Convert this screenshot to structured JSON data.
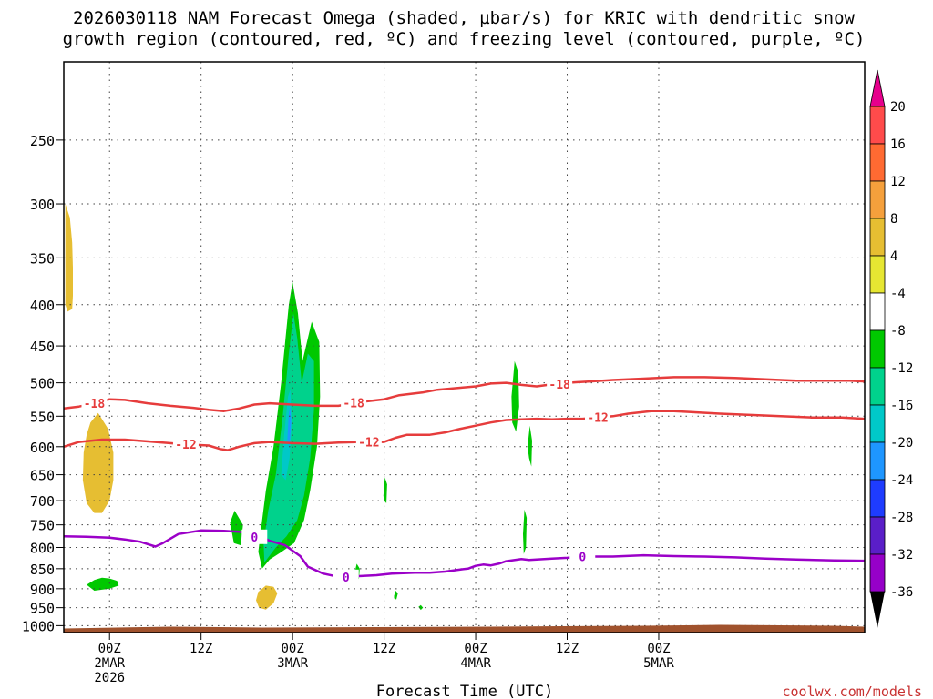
{
  "chart_data": {
    "type": "time-height contour",
    "title_lines": [
      "2026030118 NAM Forecast Omega (shaded, µbar/s) for KRIC with dendritic snow",
      "growth region (contoured, red, ºC) and freezing level (contoured, purple, ºC)"
    ],
    "xlabel": "Forecast Time (UTC)",
    "credit": "coolwx.com/models",
    "x_range_hours": [
      -6,
      99
    ],
    "y_range_mb": [
      1020,
      200
    ],
    "y_ticks": [
      250,
      300,
      350,
      400,
      450,
      500,
      550,
      600,
      650,
      700,
      750,
      800,
      850,
      900,
      950,
      1000
    ],
    "x_ticks": [
      {
        "t": 0,
        "lines": [
          "00Z",
          "2MAR",
          "2026"
        ]
      },
      {
        "t": 12,
        "lines": [
          "12Z"
        ]
      },
      {
        "t": 24,
        "lines": [
          "00Z",
          "3MAR"
        ]
      },
      {
        "t": 36,
        "lines": [
          "12Z"
        ]
      },
      {
        "t": 48,
        "lines": [
          "00Z",
          "4MAR"
        ]
      },
      {
        "t": 60,
        "lines": [
          "12Z"
        ]
      },
      {
        "t": 72,
        "lines": [
          "00Z",
          "5MAR"
        ]
      }
    ],
    "colorbar": [
      {
        "label": "20",
        "color": "#ff4b4b"
      },
      {
        "label": "16",
        "color": "#ff6a32"
      },
      {
        "label": "12",
        "color": "#f5a03c"
      },
      {
        "label": "8",
        "color": "#e6be32"
      },
      {
        "label": "4",
        "color": "#e6e632"
      },
      {
        "label": "-4",
        "color": "#ffffff"
      },
      {
        "label": "-8",
        "color": "#00c800"
      },
      {
        "label": "-12",
        "color": "#00d28c"
      },
      {
        "label": "-16",
        "color": "#00c8c8"
      },
      {
        "label": "-20",
        "color": "#1e96ff"
      },
      {
        "label": "-24",
        "color": "#1e3cff"
      },
      {
        "label": "-28",
        "color": "#5a1ec8"
      },
      {
        "label": "-32",
        "color": "#9600c8"
      },
      {
        "label": "-36",
        "color": "#a0a0a0"
      }
    ],
    "colorbar_top_color": "#e6008c",
    "colorbar_bottom_color": "#000000",
    "contour_colors": {
      "dgz": "#e63c3c",
      "freezing": "#9b00c8",
      "terrain": "#a0522d"
    },
    "dgz_minus12": [
      [
        -6,
        600
      ],
      [
        -4,
        592
      ],
      [
        -1,
        588
      ],
      [
        2,
        588
      ],
      [
        6,
        592
      ],
      [
        10,
        596
      ],
      [
        13,
        598
      ],
      [
        14.5,
        604
      ],
      [
        15.5,
        606
      ],
      [
        17,
        600
      ],
      [
        19,
        594
      ],
      [
        21,
        592
      ],
      [
        24,
        594
      ],
      [
        27,
        595
      ],
      [
        30,
        593
      ],
      [
        33,
        592
      ],
      [
        36,
        592
      ],
      [
        37.5,
        585
      ],
      [
        39,
        580
      ],
      [
        42,
        580
      ],
      [
        44,
        576
      ],
      [
        46,
        570
      ],
      [
        48,
        565
      ],
      [
        50,
        560
      ],
      [
        52,
        556
      ],
      [
        54,
        555
      ],
      [
        56,
        554
      ],
      [
        58,
        555
      ],
      [
        60,
        554
      ],
      [
        62,
        554
      ],
      [
        64,
        552
      ],
      [
        66,
        550
      ],
      [
        68,
        546
      ],
      [
        71,
        542
      ],
      [
        74,
        542
      ],
      [
        77,
        544
      ],
      [
        80,
        546
      ],
      [
        84,
        548
      ],
      [
        88,
        550
      ],
      [
        92,
        552
      ],
      [
        96,
        552
      ],
      [
        99,
        554
      ]
    ],
    "dgz_minus12_labels": [
      [
        10,
        596,
        "-12"
      ],
      [
        34,
        592,
        "-12"
      ],
      [
        64,
        552,
        "-12"
      ]
    ],
    "dgz_minus18": [
      [
        -6,
        538
      ],
      [
        -4,
        535
      ],
      [
        -2,
        530
      ],
      [
        0,
        524
      ],
      [
        2,
        525
      ],
      [
        5,
        530
      ],
      [
        8,
        534
      ],
      [
        11,
        537
      ],
      [
        13,
        540
      ],
      [
        15,
        542
      ],
      [
        17,
        538
      ],
      [
        19,
        532
      ],
      [
        21,
        530
      ],
      [
        24,
        532
      ],
      [
        27,
        534
      ],
      [
        30,
        534
      ],
      [
        33,
        528
      ],
      [
        36,
        524
      ],
      [
        38,
        518
      ],
      [
        41,
        514
      ],
      [
        43,
        510
      ],
      [
        46,
        507
      ],
      [
        48,
        505
      ],
      [
        50,
        501
      ],
      [
        52,
        500
      ],
      [
        54,
        503
      ],
      [
        56,
        505
      ],
      [
        58,
        502
      ],
      [
        60,
        500
      ],
      [
        63,
        498
      ],
      [
        66,
        496
      ],
      [
        70,
        494
      ],
      [
        74,
        492
      ],
      [
        78,
        492
      ],
      [
        82,
        493
      ],
      [
        86,
        495
      ],
      [
        90,
        497
      ],
      [
        94,
        497
      ],
      [
        97,
        497
      ],
      [
        99,
        498
      ]
    ],
    "dgz_minus18_labels": [
      [
        -2,
        530,
        "-18"
      ],
      [
        32,
        529,
        "-18"
      ],
      [
        59,
        502,
        "-18"
      ]
    ],
    "freezing_line": [
      [
        -6,
        775
      ],
      [
        -3,
        776
      ],
      [
        0,
        778
      ],
      [
        2,
        782
      ],
      [
        4,
        787
      ],
      [
        6,
        798
      ],
      [
        7,
        790
      ],
      [
        9,
        770
      ],
      [
        12,
        762
      ],
      [
        15,
        763
      ],
      [
        17,
        765
      ],
      [
        19,
        770
      ],
      [
        20,
        777
      ],
      [
        21,
        785
      ],
      [
        23,
        795
      ],
      [
        25,
        820
      ],
      [
        26,
        845
      ],
      [
        28,
        862
      ],
      [
        30,
        870
      ],
      [
        33,
        868
      ],
      [
        35,
        866
      ],
      [
        37,
        862
      ],
      [
        40,
        860
      ],
      [
        42,
        860
      ],
      [
        44,
        857
      ],
      [
        46,
        852
      ],
      [
        47,
        850
      ],
      [
        48,
        843
      ],
      [
        49,
        840
      ],
      [
        50,
        842
      ],
      [
        51,
        838
      ],
      [
        52,
        832
      ],
      [
        54,
        827
      ],
      [
        55,
        829
      ],
      [
        56,
        828
      ],
      [
        58,
        826
      ],
      [
        60,
        824
      ],
      [
        62,
        821
      ],
      [
        66,
        821
      ],
      [
        70,
        818
      ],
      [
        74,
        820
      ],
      [
        78,
        821
      ],
      [
        82,
        823
      ],
      [
        86,
        826
      ],
      [
        90,
        828
      ],
      [
        95,
        830
      ],
      [
        99,
        831
      ]
    ],
    "freezing_labels": [
      [
        19,
        776,
        "0"
      ],
      [
        31,
        870,
        "0"
      ],
      [
        62,
        821,
        "0"
      ]
    ],
    "omega_regions": [
      {
        "value": -8,
        "points": [
          [
            -3,
            890
          ],
          [
            -2,
            878
          ],
          [
            -1,
            872
          ],
          [
            0,
            874
          ],
          [
            1,
            880
          ],
          [
            1.2,
            892
          ],
          [
            0,
            900
          ],
          [
            -2,
            905
          ]
        ]
      },
      {
        "value": 8,
        "points": [
          [
            -5.8,
            300
          ],
          [
            -5.2,
            312
          ],
          [
            -4.9,
            335
          ],
          [
            -4.8,
            360
          ],
          [
            -4.8,
            390
          ],
          [
            -4.9,
            405
          ],
          [
            -5.5,
            408
          ],
          [
            -5.8,
            400
          ]
        ]
      },
      {
        "value": 8,
        "points": [
          [
            -2.5,
            560
          ],
          [
            -1.5,
            545
          ],
          [
            -0.2,
            570
          ],
          [
            0.5,
            610
          ],
          [
            0.5,
            660
          ],
          [
            0,
            700
          ],
          [
            -1,
            725
          ],
          [
            -2,
            725
          ],
          [
            -3,
            705
          ],
          [
            -3.5,
            660
          ],
          [
            -3.4,
            610
          ],
          [
            -3,
            580
          ]
        ]
      },
      {
        "value": 8,
        "points": [
          [
            19.5,
            908
          ],
          [
            20.5,
            892
          ],
          [
            21.5,
            895
          ],
          [
            22,
            912
          ],
          [
            21.5,
            938
          ],
          [
            20.5,
            955
          ],
          [
            19.6,
            950
          ],
          [
            19.2,
            930
          ]
        ]
      },
      {
        "value": -8,
        "points": [
          [
            20,
            850
          ],
          [
            19.5,
            810
          ],
          [
            20,
            740
          ],
          [
            20.5,
            680
          ],
          [
            21.5,
            600
          ],
          [
            22.5,
            500
          ],
          [
            23.5,
            400
          ],
          [
            24,
            375
          ],
          [
            24.7,
            410
          ],
          [
            25.3,
            470
          ],
          [
            26.5,
            420
          ],
          [
            27.5,
            445
          ],
          [
            27.6,
            520
          ],
          [
            27.2,
            600
          ],
          [
            26.3,
            680
          ],
          [
            25.5,
            740
          ],
          [
            24.2,
            790
          ],
          [
            22.4,
            812
          ],
          [
            21,
            828
          ]
        ]
      },
      {
        "value": -12,
        "points": [
          [
            20.3,
            835
          ],
          [
            20.2,
            790
          ],
          [
            20.8,
            720
          ],
          [
            21.8,
            650
          ],
          [
            22.7,
            550
          ],
          [
            23.5,
            460
          ],
          [
            24.1,
            410
          ],
          [
            24.6,
            440
          ],
          [
            25.2,
            500
          ],
          [
            26,
            460
          ],
          [
            26.8,
            470
          ],
          [
            26.8,
            540
          ],
          [
            26.3,
            620
          ],
          [
            25.5,
            690
          ],
          [
            24.6,
            740
          ],
          [
            23.2,
            775
          ],
          [
            21.8,
            800
          ]
        ]
      },
      {
        "value": -16,
        "points": [
          [
            22.5,
            650
          ],
          [
            22.9,
            580
          ],
          [
            23.4,
            520
          ],
          [
            23.7,
            510
          ],
          [
            23.9,
            560
          ],
          [
            23.6,
            620
          ],
          [
            23.1,
            660
          ]
        ]
      },
      {
        "value": -20,
        "points": [
          [
            23.3,
            590
          ],
          [
            23.5,
            545
          ],
          [
            23.7,
            535
          ],
          [
            23.8,
            560
          ],
          [
            23.6,
            600
          ]
        ]
      },
      {
        "value": -8,
        "points": [
          [
            15.8,
            745
          ],
          [
            16.4,
            720
          ],
          [
            17.5,
            750
          ],
          [
            17.2,
            795
          ],
          [
            16.3,
            790
          ]
        ]
      },
      {
        "value": -8,
        "points": [
          [
            52.7,
            520
          ],
          [
            53.1,
            470
          ],
          [
            53.6,
            485
          ],
          [
            53.7,
            535
          ],
          [
            53.3,
            575
          ],
          [
            52.8,
            560
          ]
        ]
      },
      {
        "value": -8,
        "points": [
          [
            54.8,
            600
          ],
          [
            55.1,
            565
          ],
          [
            55.4,
            590
          ],
          [
            55.3,
            635
          ],
          [
            55,
            620
          ]
        ]
      },
      {
        "value": -8,
        "points": [
          [
            54.2,
            770
          ],
          [
            54.4,
            718
          ],
          [
            54.7,
            735
          ],
          [
            54.6,
            800
          ],
          [
            54.3,
            815
          ]
        ]
      },
      {
        "value": -8,
        "points": [
          [
            35.9,
            690
          ],
          [
            36.1,
            655
          ],
          [
            36.4,
            668
          ],
          [
            36.3,
            705
          ],
          [
            36,
            700
          ]
        ]
      },
      {
        "value": -8,
        "points": [
          [
            32.1,
            862
          ],
          [
            32.4,
            838
          ],
          [
            32.8,
            850
          ],
          [
            32.7,
            875
          ],
          [
            32.3,
            878
          ]
        ]
      },
      {
        "value": -8,
        "points": [
          [
            37.3,
            918
          ],
          [
            37.5,
            905
          ],
          [
            37.8,
            912
          ],
          [
            37.6,
            928
          ],
          [
            37.3,
            925
          ]
        ]
      },
      {
        "value": -8,
        "points": [
          [
            40.5,
            948
          ],
          [
            40.8,
            943
          ],
          [
            41.1,
            950
          ],
          [
            40.8,
            956
          ]
        ]
      }
    ]
  }
}
